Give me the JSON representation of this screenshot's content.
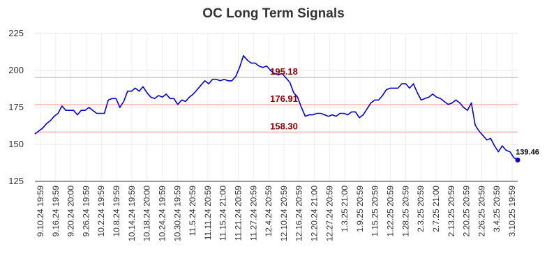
{
  "chart_data": {
    "type": "line",
    "title": "OC Long Term Signals",
    "xlabel": "",
    "ylabel": "",
    "ylim": [
      125,
      225
    ],
    "y_ticks": [
      125,
      150,
      175,
      200,
      225
    ],
    "x_tick_labels": [
      "9.10.24 19:59",
      "9.16.24 19:59",
      "9.20.24 20:00",
      "9.26.24 19:59",
      "10.2.24 19:59",
      "10.8.24 19:59",
      "10.14.24 19:59",
      "10.18.24 20:00",
      "10.24.24 19:59",
      "10.30.24 19:59",
      "11.5.24 20:59",
      "11.11.24 20:59",
      "11.15.24 21:00",
      "11.21.24 20:59",
      "11.27.24 20:59",
      "12.4.24 20:59",
      "12.10.24 20:59",
      "12.16.24 20:59",
      "12.20.24 21:00",
      "12.27.24 20:59",
      "1.3.25 21:00",
      "1.9.25 20:59",
      "1.15.25 20:59",
      "1.22.25 20:59",
      "1.28.25 20:59",
      "2.3.25 20:59",
      "2.7.25 21:00",
      "2.13.25 20:59",
      "2.20.25 20:59",
      "2.26.25 20:59",
      "3.4.25 20:59",
      "3.10.25 19:59"
    ],
    "grid": true,
    "legend": "none",
    "line_color": "#0000cc",
    "level_color": "#ffb3b3",
    "level_label_color": "#8b0000",
    "horizontal_levels": [
      {
        "value": 195.18,
        "label": "195.18"
      },
      {
        "value": 176.91,
        "label": "176.91"
      },
      {
        "value": 158.3,
        "label": "158.30"
      }
    ],
    "last_point_label": "139.46",
    "series": [
      {
        "values": [
          157,
          159,
          161,
          164,
          166,
          169,
          171,
          176,
          173,
          173,
          173,
          170,
          173,
          173,
          175,
          173,
          171,
          171,
          171,
          180,
          181,
          181,
          175,
          179,
          186,
          186,
          188,
          186,
          189,
          185,
          182,
          181,
          183,
          182,
          184,
          181,
          181,
          177,
          180,
          179,
          182,
          184,
          187,
          190,
          193,
          191,
          194,
          194,
          193,
          194,
          193,
          193,
          196,
          202,
          210,
          207,
          205,
          205,
          203,
          202,
          203,
          200,
          198,
          197,
          198,
          195,
          192,
          185,
          182,
          175,
          169,
          170,
          170,
          171,
          171,
          170,
          169,
          170,
          169,
          171,
          171,
          170,
          172,
          172,
          168,
          170,
          174,
          178,
          180,
          180,
          183,
          187,
          188,
          188,
          188,
          191,
          191,
          188,
          191,
          185,
          180,
          181,
          182,
          184,
          182,
          181,
          179,
          177,
          178,
          180,
          178,
          175,
          173,
          178,
          163,
          159,
          156,
          153,
          154,
          149,
          145,
          149,
          146,
          145,
          141,
          139.46
        ]
      }
    ]
  }
}
